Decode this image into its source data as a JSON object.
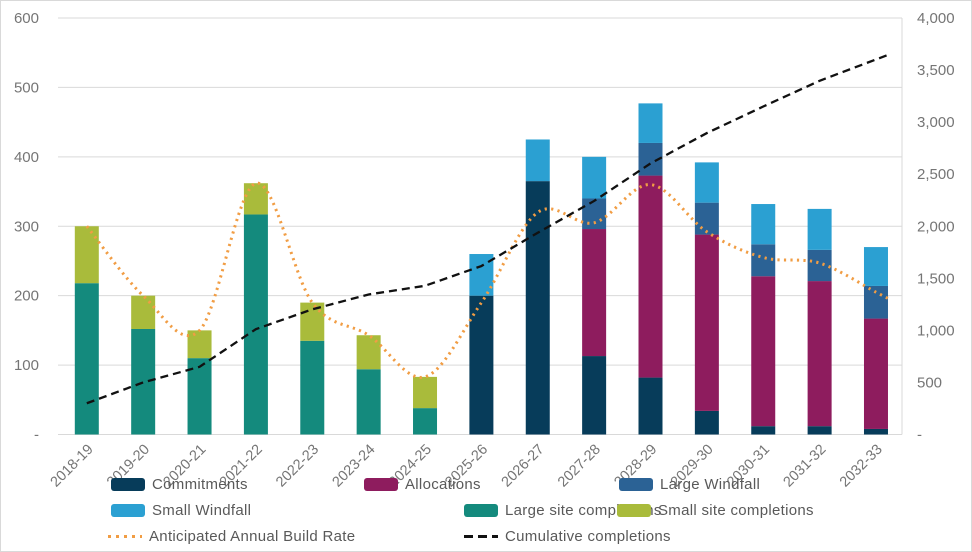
{
  "chart_data": {
    "type": "bar",
    "subtype": "stacked-columns-with-lines",
    "title": "",
    "categories": [
      "2018-19",
      "2019-20",
      "2020-21",
      "2021-22",
      "2022-23",
      "2023-24",
      "2024-25",
      "2025-26",
      "2026-27",
      "2027-28",
      "2028-29",
      "2029-30",
      "2030-31",
      "2031-32",
      "2032-33"
    ],
    "series": [
      {
        "name": "Commitments",
        "color": "#073c5a",
        "values": [
          0,
          0,
          0,
          0,
          0,
          0,
          0,
          200,
          365,
          113,
          82,
          34,
          12,
          12,
          8
        ]
      },
      {
        "name": "Allocations",
        "color": "#8e1c5e",
        "values": [
          0,
          0,
          0,
          0,
          0,
          0,
          0,
          0,
          0,
          183,
          291,
          254,
          216,
          209,
          159
        ]
      },
      {
        "name": "Large Windfall",
        "color": "#2b6295",
        "values": [
          0,
          0,
          0,
          0,
          0,
          0,
          0,
          0,
          0,
          44,
          47,
          46,
          46,
          45,
          47
        ]
      },
      {
        "name": "Small Windfall",
        "color": "#2ba0d2",
        "values": [
          0,
          0,
          0,
          0,
          0,
          0,
          0,
          60,
          60,
          60,
          57,
          58,
          58,
          59,
          56
        ]
      },
      {
        "name": "Large site completions",
        "color": "#148a7d",
        "values": [
          218,
          152,
          110,
          317,
          135,
          94,
          38,
          0,
          0,
          0,
          0,
          0,
          0,
          0,
          0
        ]
      },
      {
        "name": "Small site completions",
        "color": "#a9bb3b",
        "values": [
          82,
          48,
          40,
          45,
          55,
          49,
          45,
          0,
          0,
          0,
          0,
          0,
          0,
          0,
          0
        ]
      }
    ],
    "lines": [
      {
        "name": "Anticipated Annual Build Rate",
        "color": "#f19d44",
        "style": "dotted",
        "axis": "left",
        "values": [
          300,
          200,
          150,
          362,
          190,
          143,
          83,
          190,
          320,
          305,
          360,
          292,
          255,
          247,
          205
        ]
      },
      {
        "name": "Cumulative completions",
        "color": "#111111",
        "style": "dashed",
        "axis": "right",
        "values": [
          300,
          500,
          650,
          1012,
          1202,
          1345,
          1428,
          1618,
          1938,
          2243,
          2603,
          2895,
          3150,
          3397,
          3602
        ]
      }
    ],
    "left_axis": {
      "max": 600,
      "ticks": [
        "600",
        "500",
        "400",
        "300",
        "200",
        "100",
        "-"
      ],
      "values": [
        600,
        500,
        400,
        300,
        200,
        100,
        0
      ]
    },
    "right_axis": {
      "max": 4000,
      "ticks": [
        "4,000",
        "3,500",
        "3,000",
        "2,500",
        "2,000",
        "1,500",
        "1,000",
        "500",
        "-"
      ],
      "values": [
        4000,
        3500,
        3000,
        2500,
        2000,
        1500,
        1000,
        500,
        0
      ]
    },
    "grid": true,
    "legend_position": "bottom"
  },
  "legend": {
    "items": [
      {
        "label": "Commitments",
        "color": "#073c5a",
        "swatch": "bar"
      },
      {
        "label": "Allocations",
        "color": "#8e1c5e",
        "swatch": "bar"
      },
      {
        "label": "Large Windfall",
        "color": "#2b6295",
        "swatch": "bar"
      },
      {
        "label": "Small Windfall",
        "color": "#2ba0d2",
        "swatch": "bar"
      },
      {
        "label": "Large site completions",
        "color": "#148a7d",
        "swatch": "bar"
      },
      {
        "label": "Small site completions",
        "color": "#a9bb3b",
        "swatch": "bar"
      },
      {
        "label": "Anticipated Annual Build Rate",
        "color": "#f19d44",
        "swatch": "dots"
      },
      {
        "label": "Cumulative completions",
        "color": "#111111",
        "swatch": "dash"
      }
    ]
  }
}
